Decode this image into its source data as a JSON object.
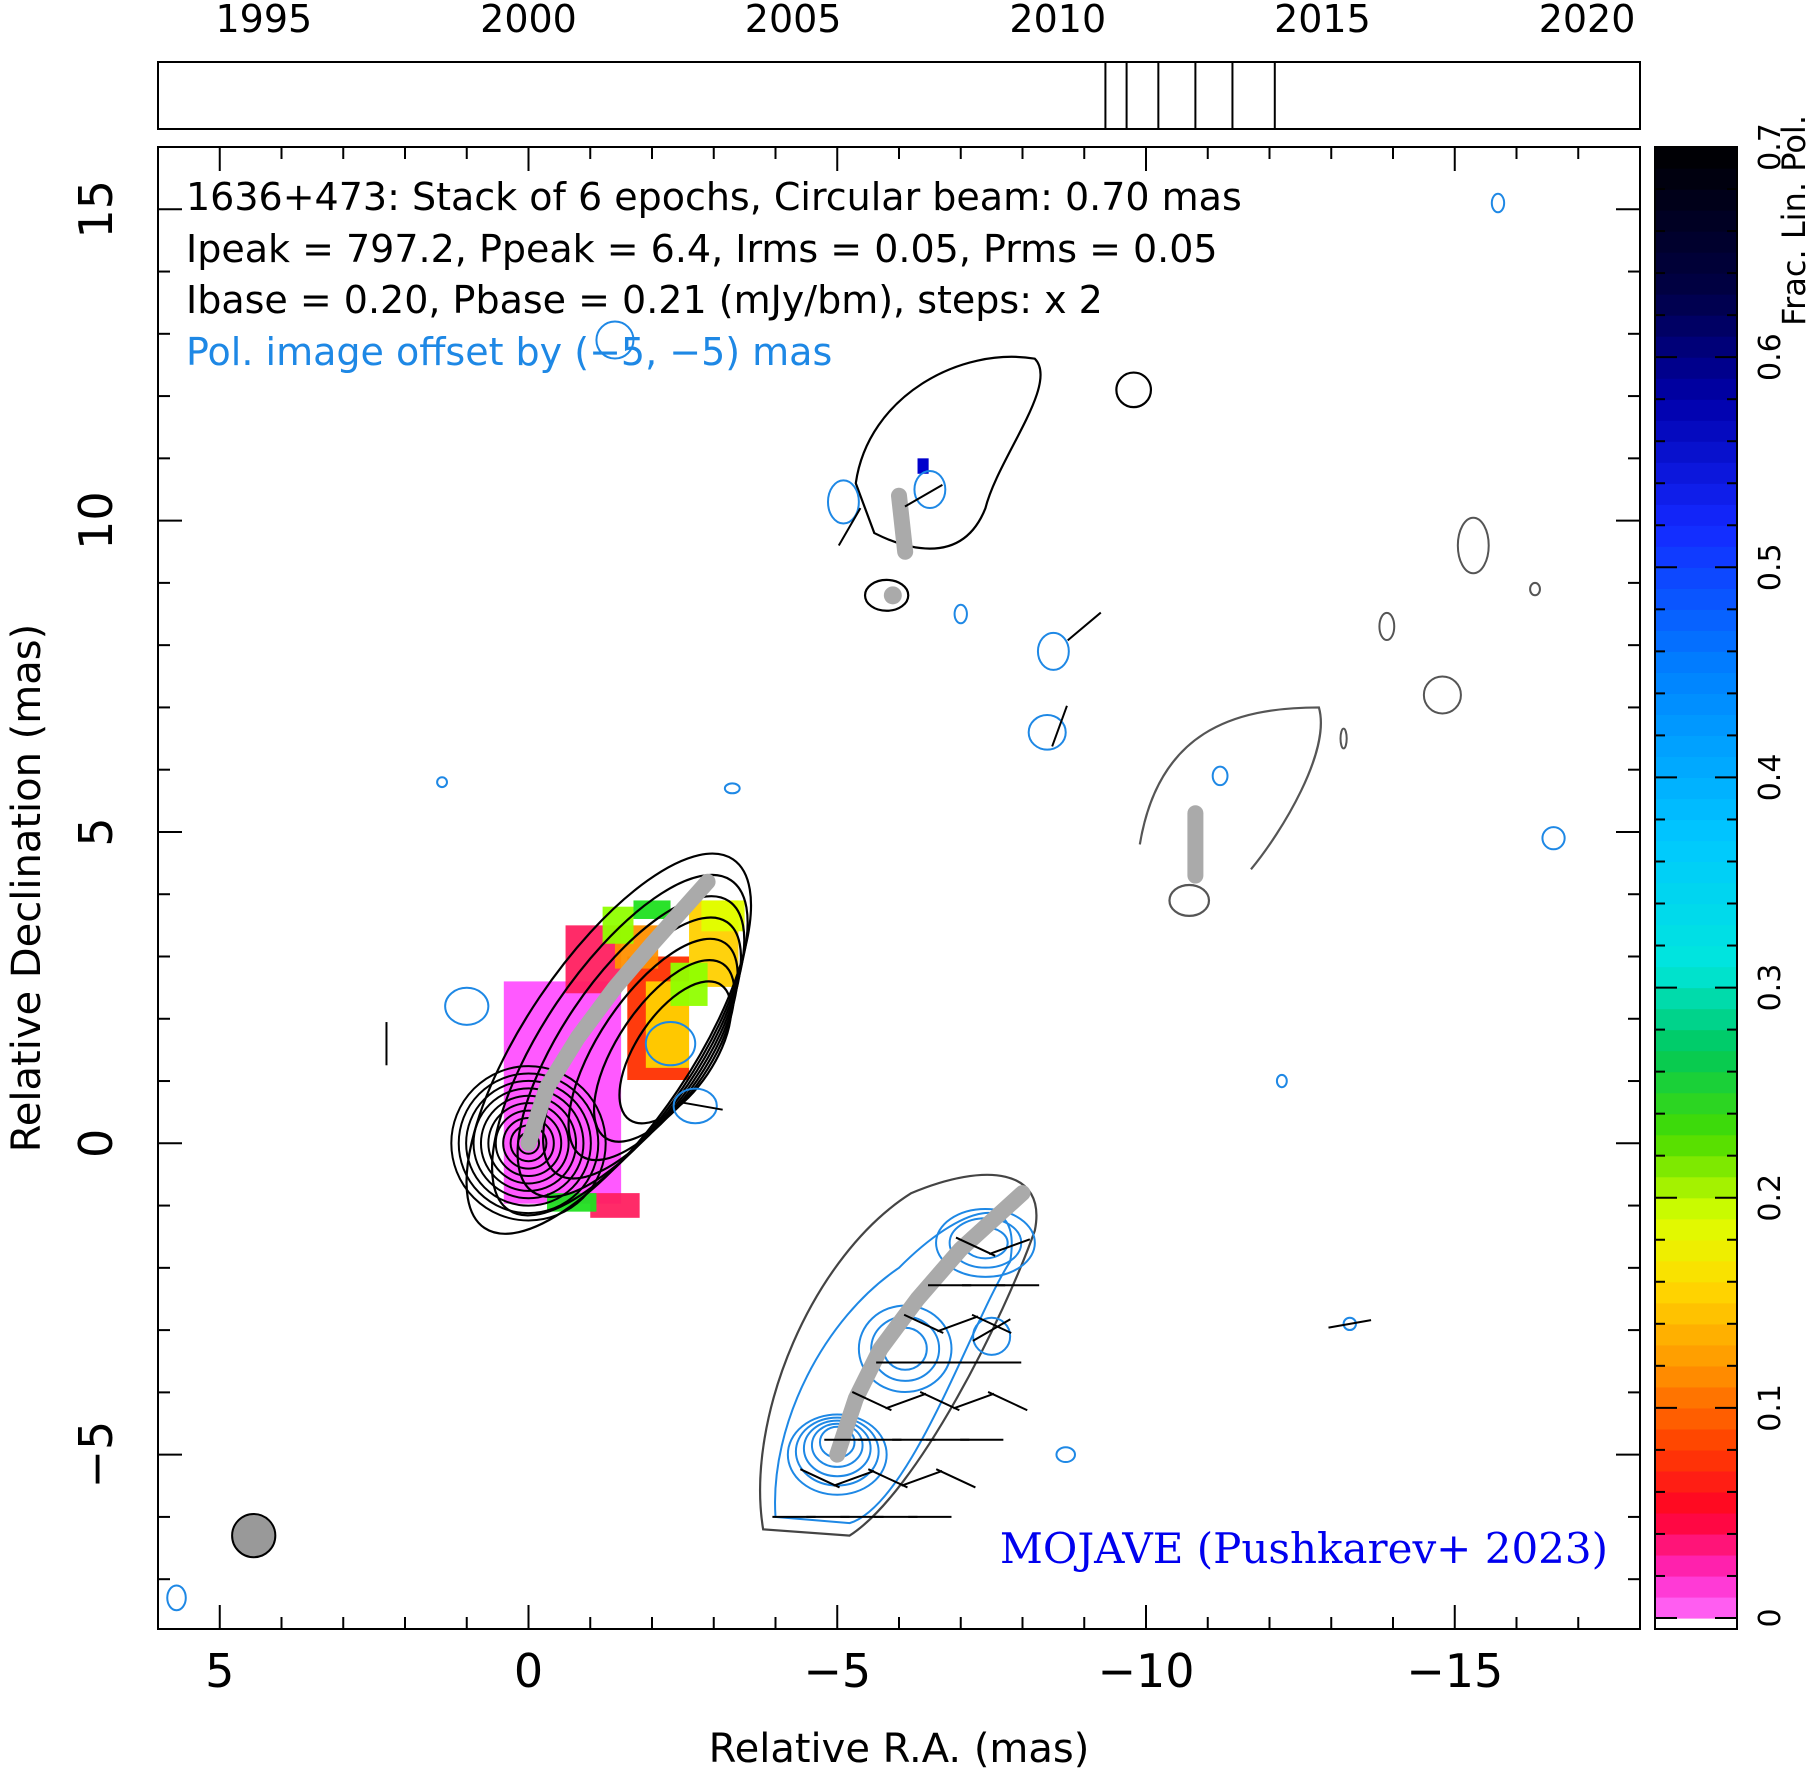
{
  "chart_data": {
    "type": "contour",
    "title": "1636+473: Stack of 6 epochs, Circular beam: 0.70 mas",
    "info_lines": [
      "Ipeak = 797.2, Ppeak = 6.4, Irms = 0.05, Prms = 0.05",
      "Ibase = 0.20, Pbase = 0.21 (mJy/bm), steps: x 2"
    ],
    "offset_note": "Pol. image offset by (−5, −5) mas",
    "credit": "MOJAVE (Pushkarev+ 2023)",
    "xlabel": "Relative R.A. (mas)",
    "ylabel": "Relative Declination (mas)",
    "xlim": [
      6.0,
      -18.0
    ],
    "ylim": [
      -7.8,
      16.0
    ],
    "x_ticks": [
      "5",
      "0",
      "−5",
      "−10",
      "−15"
    ],
    "y_ticks": [
      "15",
      "10",
      "5",
      "0",
      "−5"
    ],
    "timeline": {
      "years": [
        "1995",
        "2000",
        "2005",
        "2010",
        "2015",
        "2020"
      ],
      "range": [
        1993.0,
        2021.0
      ],
      "epochs": [
        2010.9,
        2011.3,
        2011.9,
        2012.6,
        2013.3,
        2014.1
      ]
    },
    "colorbar": {
      "label": "Frac. Lin. Pol.",
      "range": [
        0,
        0.7
      ],
      "ticks": [
        "0",
        "0.1",
        "0.2",
        "0.3",
        "0.4",
        "0.5",
        "0.6",
        "0.7"
      ]
    },
    "beam": {
      "x": 4.45,
      "y": -6.3,
      "diameter_mas": 0.7
    },
    "ridgelines": {
      "total_intensity": [
        [
          0,
          0
        ],
        [
          -0.3,
          0.9
        ],
        [
          -0.8,
          1.7
        ],
        [
          -1.4,
          2.5
        ],
        [
          -2.0,
          3.2
        ],
        [
          -2.9,
          4.2
        ]
      ],
      "polarization_offset": [
        [
          -5,
          -5
        ],
        [
          -5.3,
          -4.1
        ],
        [
          -5.7,
          -3.3
        ],
        [
          -6.3,
          -2.5
        ],
        [
          -7.0,
          -1.7
        ],
        [
          -8.0,
          -0.8
        ]
      ],
      "secondary_epoch_a": [
        [
          -6.0,
          10.4
        ],
        [
          -6.1,
          9.5
        ]
      ],
      "secondary_epoch_b": [
        [
          -10.8,
          5.3
        ],
        [
          -10.8,
          4.3
        ]
      ]
    },
    "color_swatches": [
      "#ff50ff",
      "#ff2060",
      "#ff3000",
      "#ff9000",
      "#ffd000",
      "#e0ff00",
      "#90ff00",
      "#20e020"
    ]
  }
}
